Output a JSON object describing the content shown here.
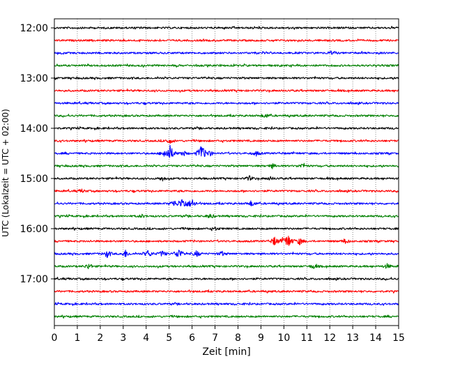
{
  "chart_data": {
    "type": "line",
    "title": "",
    "xlabel": "Zeit  [min]",
    "ylabel": "UTC (Lokalzeit = UTC + 02:00)",
    "xlim": [
      0,
      15
    ],
    "x_ticks": [
      "0",
      "1",
      "2",
      "3",
      "4",
      "5",
      "6",
      "7",
      "8",
      "9",
      "10",
      "11",
      "12",
      "13",
      "14",
      "15"
    ],
    "y_ticks": [
      "12:00",
      "13:00",
      "14:00",
      "15:00",
      "16:00",
      "17:00"
    ],
    "grid": "x-dotted",
    "trace_interval_min": 15,
    "start_time": "12:00",
    "colors": [
      "#000000",
      "#ff0000",
      "#0000ff",
      "#008000"
    ],
    "series": [
      {
        "start": "12:00",
        "color": "#000000",
        "events": []
      },
      {
        "start": "12:15",
        "color": "#ff0000",
        "events": []
      },
      {
        "start": "12:30",
        "color": "#0000ff",
        "events": [
          {
            "t": 12.1,
            "amp": 3
          }
        ]
      },
      {
        "start": "12:45",
        "color": "#008000",
        "events": []
      },
      {
        "start": "13:00",
        "color": "#000000",
        "events": []
      },
      {
        "start": "13:15",
        "color": "#ff0000",
        "events": []
      },
      {
        "start": "13:30",
        "color": "#0000ff",
        "events": []
      },
      {
        "start": "13:45",
        "color": "#008000",
        "events": [
          {
            "t": 9.2,
            "amp": 3
          }
        ]
      },
      {
        "start": "14:00",
        "color": "#000000",
        "events": []
      },
      {
        "start": "14:15",
        "color": "#ff0000",
        "events": [
          {
            "t": 5.0,
            "amp": 4
          }
        ]
      },
      {
        "start": "14:30",
        "color": "#0000ff",
        "events": [
          {
            "t": 4.8,
            "amp": 5
          },
          {
            "t": 5.05,
            "amp": 11
          },
          {
            "t": 5.6,
            "amp": 4
          },
          {
            "t": 6.4,
            "amp": 13
          },
          {
            "t": 6.75,
            "amp": 4
          },
          {
            "t": 8.8,
            "amp": 3
          }
        ]
      },
      {
        "start": "14:45",
        "color": "#008000",
        "events": [
          {
            "t": 9.5,
            "amp": 3
          },
          {
            "t": 10.8,
            "amp": 3
          }
        ]
      },
      {
        "start": "15:00",
        "color": "#000000",
        "events": [
          {
            "t": 4.7,
            "amp": 3
          },
          {
            "t": 8.5,
            "amp": 3
          },
          {
            "t": 9.4,
            "amp": 2
          }
        ]
      },
      {
        "start": "15:15",
        "color": "#ff0000",
        "events": [
          {
            "t": 1.2,
            "amp": 2
          }
        ]
      },
      {
        "start": "15:30",
        "color": "#0000ff",
        "events": [
          {
            "t": 5.2,
            "amp": 5
          },
          {
            "t": 5.6,
            "amp": 10
          },
          {
            "t": 6.0,
            "amp": 7
          },
          {
            "t": 8.6,
            "amp": 4
          }
        ]
      },
      {
        "start": "15:45",
        "color": "#008000",
        "events": [
          {
            "t": 6.8,
            "amp": 3
          },
          {
            "t": 3.8,
            "amp": 2
          }
        ]
      },
      {
        "start": "16:00",
        "color": "#000000",
        "events": [
          {
            "t": 7.0,
            "amp": 2
          }
        ]
      },
      {
        "start": "16:15",
        "color": "#ff0000",
        "events": [
          {
            "t": 9.6,
            "amp": 6
          },
          {
            "t": 10.0,
            "amp": 4
          },
          {
            "t": 10.2,
            "amp": 9
          },
          {
            "t": 10.7,
            "amp": 5
          },
          {
            "t": 12.7,
            "amp": 3
          }
        ]
      },
      {
        "start": "16:30",
        "color": "#0000ff",
        "events": [
          {
            "t": 2.3,
            "amp": 5
          },
          {
            "t": 3.1,
            "amp": 5
          },
          {
            "t": 4.1,
            "amp": 5
          },
          {
            "t": 4.7,
            "amp": 4
          },
          {
            "t": 5.4,
            "amp": 8
          },
          {
            "t": 6.2,
            "amp": 4
          },
          {
            "t": 7.3,
            "amp": 3
          }
        ]
      },
      {
        "start": "16:45",
        "color": "#008000",
        "events": [
          {
            "t": 1.5,
            "amp": 4
          },
          {
            "t": 11.3,
            "amp": 3
          },
          {
            "t": 14.5,
            "amp": 3
          }
        ]
      },
      {
        "start": "17:00",
        "color": "#000000",
        "events": []
      },
      {
        "start": "17:15",
        "color": "#ff0000",
        "events": []
      },
      {
        "start": "17:30",
        "color": "#0000ff",
        "events": []
      },
      {
        "start": "17:45",
        "color": "#008000",
        "events": []
      }
    ]
  }
}
